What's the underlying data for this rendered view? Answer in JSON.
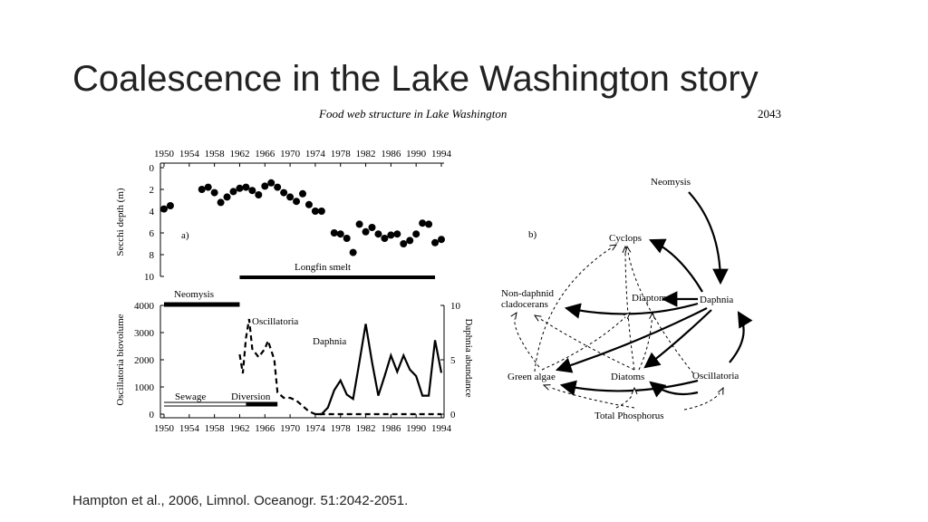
{
  "title": "Coalescence in the Lake Washington story",
  "figure": {
    "caption": "Food web structure in Lake Washington",
    "page_number": "2043"
  },
  "chart_data": [
    {
      "type": "scatter",
      "panel_label": "a)",
      "y_label": "Secchi depth (m)",
      "y_inverted": true,
      "x": [
        1950,
        1951,
        1956,
        1957,
        1958,
        1959,
        1960,
        1961,
        1962,
        1963,
        1964,
        1965,
        1966,
        1967,
        1968,
        1969,
        1970,
        1971,
        1972,
        1973,
        1974,
        1975,
        1977,
        1978,
        1979,
        1980,
        1981,
        1982,
        1983,
        1984,
        1985,
        1986,
        1987,
        1988,
        1989,
        1990,
        1991,
        1992,
        1993,
        1994
      ],
      "y": [
        3.8,
        3.5,
        2.0,
        1.8,
        2.3,
        3.2,
        2.7,
        2.2,
        1.9,
        1.8,
        2.1,
        2.5,
        1.7,
        1.4,
        1.8,
        2.3,
        2.7,
        3.1,
        2.4,
        3.4,
        4.0,
        4.0,
        6.0,
        6.1,
        6.5,
        7.8,
        5.2,
        5.9,
        5.5,
        6.1,
        6.5,
        6.2,
        6.1,
        7.0,
        6.7,
        6.1,
        5.1,
        5.2,
        6.9,
        6.6
      ],
      "xlim": [
        1950,
        1994
      ],
      "ylim": [
        0,
        10
      ],
      "xticks": [
        1950,
        1954,
        1958,
        1962,
        1966,
        1970,
        1974,
        1978,
        1982,
        1986,
        1990,
        1994
      ],
      "yticks": [
        0,
        2,
        4,
        6,
        8,
        10
      ],
      "periods": [
        {
          "label": "Longfin smelt",
          "start": 1962,
          "end": 1993,
          "style": "solid"
        }
      ]
    },
    {
      "type": "line",
      "y_label": "Oscillatoria biovolume",
      "y2_label": "Daphnia abundance",
      "xlim": [
        1950,
        1994
      ],
      "ylim": [
        0,
        4000
      ],
      "y2lim": [
        0,
        10
      ],
      "xticks": [
        1950,
        1954,
        1958,
        1962,
        1966,
        1970,
        1974,
        1978,
        1982,
        1986,
        1990,
        1994
      ],
      "yticks": [
        0,
        1000,
        2000,
        3000,
        4000
      ],
      "y2ticks": [
        0,
        5,
        10
      ],
      "series": [
        {
          "name": "Oscillatoria",
          "color": "#000000",
          "dashed": true,
          "x": [
            1962,
            1962.5,
            1963,
            1963.5,
            1964,
            1965,
            1966,
            1966.5,
            1967.5,
            1968,
            1969,
            1970,
            1971,
            1972,
            1973,
            1974,
            1976,
            1994
          ],
          "values": [
            2200,
            1500,
            2800,
            3500,
            2400,
            2100,
            2400,
            2700,
            2000,
            800,
            600,
            600,
            500,
            300,
            100,
            0,
            0,
            0
          ]
        },
        {
          "name": "Daphnia",
          "color": "#000000",
          "dashed": false,
          "axis": "y2",
          "x": [
            1974,
            1975,
            1976,
            1977,
            1978,
            1979,
            1980,
            1981,
            1982,
            1983,
            1984,
            1985,
            1986,
            1987,
            1988,
            1989,
            1990,
            1991,
            1992,
            1993,
            1994
          ],
          "values": [
            0,
            0,
            0.6,
            2.2,
            3.1,
            1.8,
            1.4,
            4.8,
            8.3,
            4.8,
            1.7,
            3.5,
            5.4,
            3.9,
            5.4,
            4.1,
            3.5,
            1.7,
            1.7,
            6.8,
            3.8
          ]
        }
      ],
      "periods": [
        {
          "label": "Neomysis",
          "start": 1950,
          "end": 1962,
          "style": "solid"
        },
        {
          "label": "Sewage",
          "start": 1950,
          "end": 1963,
          "style": "double"
        },
        {
          "label": "Diversion",
          "start": 1963,
          "end": 1968,
          "style": "solid"
        }
      ]
    }
  ],
  "food_web": {
    "label": "b)",
    "nodes": [
      "Neomysis",
      "Cyclops",
      "Non-daphnid",
      "cladocerans",
      "Diaptomus",
      "Daphnia",
      "Green algae",
      "Diatoms",
      "Oscillatoria",
      "Total Phosphorus"
    ]
  },
  "citation": "Hampton et al., 2006, Limnol. Oceanogr. 51:2042-2051."
}
